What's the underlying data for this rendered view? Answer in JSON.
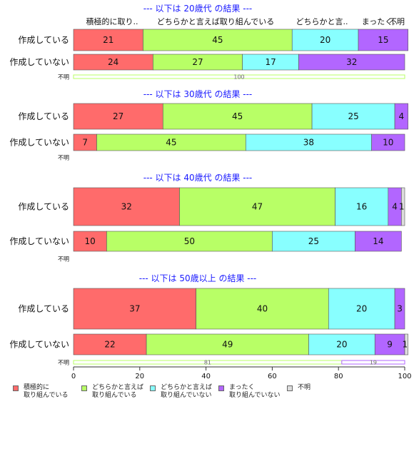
{
  "chart_data": {
    "type": "bar",
    "orientation": "horizontal-stacked-percent",
    "xlim": [
      0,
      100
    ],
    "xticks": [
      "0",
      "20",
      "40",
      "60",
      "80",
      "100"
    ],
    "category_headers": [
      "積極的に取り..",
      "どちらかと言えば取り組んでいる",
      "どちらかと言..",
      "まったく..",
      "不明"
    ],
    "colors": {
      "positive": "#ff6b6b",
      "somewhat_positive": "#b8ff66",
      "somewhat_negative": "#88ffff",
      "negative": "#b266ff",
      "unknown": "#dddddd"
    },
    "panels": [
      {
        "title": "--- 以下は 20歳代 の結果 ---",
        "rows": [
          {
            "label": "作成している",
            "values": [
              21,
              45,
              20,
              15,
              0
            ]
          },
          {
            "label": "作成していない",
            "values": [
              24,
              27,
              17,
              32,
              0
            ]
          },
          {
            "label": "不明",
            "values": [
              0,
              100,
              0,
              0,
              0
            ],
            "value_labels": [
              "",
              "100",
              "",
              "",
              ""
            ]
          }
        ]
      },
      {
        "title": "--- 以下は 30歳代 の結果 ---",
        "rows": [
          {
            "label": "作成している",
            "values": [
              27,
              45,
              25,
              4,
              0
            ]
          },
          {
            "label": "作成していない",
            "values": [
              7,
              45,
              38,
              10,
              0
            ]
          },
          {
            "label": "不明",
            "values": [
              0,
              0,
              0,
              0,
              0
            ]
          }
        ]
      },
      {
        "title": "--- 以下は 40歳代 の結果 ---",
        "rows": [
          {
            "label": "作成している",
            "values": [
              32,
              47,
              16,
              4,
              1
            ]
          },
          {
            "label": "作成していない",
            "values": [
              10,
              50,
              25,
              14,
              0
            ]
          },
          {
            "label": "不明",
            "values": [
              0,
              0,
              0,
              0,
              0
            ]
          }
        ]
      },
      {
        "title": "--- 以下は 50歳以上 の結果 ---",
        "rows": [
          {
            "label": "作成している",
            "values": [
              37,
              40,
              20,
              3,
              0
            ]
          },
          {
            "label": "作成していない",
            "values": [
              22,
              49,
              20,
              9,
              1
            ]
          },
          {
            "label": "不明",
            "values": [
              0,
              81,
              0,
              19,
              0
            ],
            "value_labels": [
              "",
              "81",
              "",
              "19",
              ""
            ]
          }
        ]
      }
    ],
    "legend": [
      {
        "label": "積極的に\n取り組んでいる",
        "color": "#ff6b6b"
      },
      {
        "label": "どちらかと言えば\n取り組んでいる",
        "color": "#b8ff66"
      },
      {
        "label": "どちらかと言えば\n取り組んでいない",
        "color": "#88ffff"
      },
      {
        "label": "まったく\n取り組んでいない",
        "color": "#b266ff"
      },
      {
        "label": "不明",
        "color": "#dddddd"
      }
    ]
  }
}
